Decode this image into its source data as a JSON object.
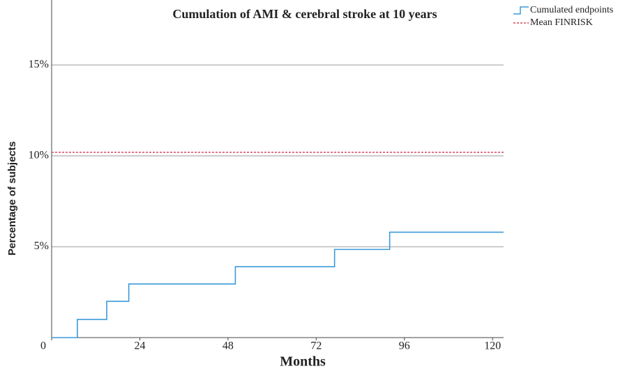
{
  "chart_data": {
    "type": "line",
    "step": "post",
    "title": "Cumulation of AMI & cerebral stroke at 10 years",
    "x_label": "Months",
    "y_label": "Percentage of subjects",
    "x": [
      0,
      7,
      15,
      21,
      50,
      77,
      92,
      123
    ],
    "series": [
      {
        "name": "Cumulated endpoints",
        "color": "#3a9ad9",
        "values": [
          0,
          1,
          2,
          2.95,
          3.9,
          4.85,
          5.8,
          5.8
        ]
      }
    ],
    "reference_lines": [
      {
        "name": "Mean FINRISK",
        "color": "#d9465e",
        "value": 10.2
      }
    ],
    "xlim": [
      0,
      123
    ],
    "xticks": [
      0,
      24,
      48,
      72,
      96,
      120
    ],
    "ylim": [
      0,
      18.5
    ],
    "yticks": [
      {
        "value": 5,
        "label": "5%"
      },
      {
        "value": 10,
        "label": "10%"
      },
      {
        "value": 15,
        "label": "15%"
      }
    ],
    "grid": true,
    "legend": "top-right"
  }
}
